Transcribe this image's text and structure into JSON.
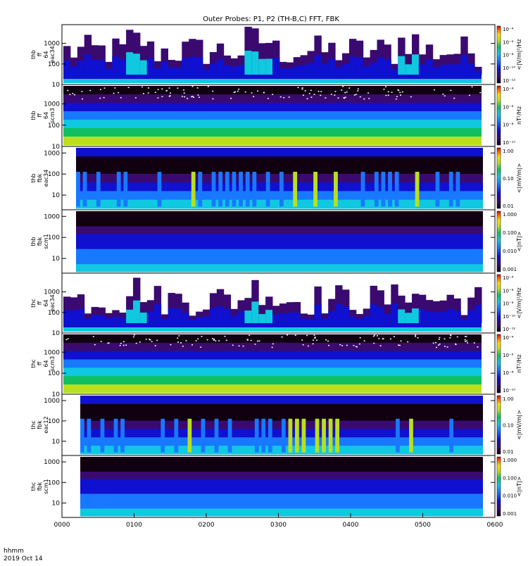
{
  "title": "Outer Probes: P1, P2 (TH-B,C) FFT, FBK",
  "time_axis": {
    "ticks": [
      "0000",
      "0100",
      "0200",
      "0300",
      "0400",
      "0500",
      "0600"
    ],
    "unit_label": "hhmm",
    "date_label": "2019 Oct 14"
  },
  "chart_data": [
    {
      "type": "heatmap",
      "panel": "thb-ff-eac34",
      "ylabel": [
        "thb",
        "ff",
        "64",
        "eac34"
      ],
      "yticks": [
        "10",
        "100",
        "1000"
      ],
      "colorbar_label": "<|V/m|²/Hz",
      "colorbar_ticks": [
        "10⁻¹²",
        "10⁻¹⁰",
        "10⁻⁸",
        "10⁻⁶",
        "10⁻⁴"
      ],
      "ylim": [
        10,
        8192
      ],
      "xlim": [
        "0000",
        "0600"
      ]
    },
    {
      "type": "heatmap",
      "panel": "thb-ff-scm3",
      "ylabel": [
        "thb",
        "ff",
        "64",
        "scm3"
      ],
      "yticks": [
        "10",
        "100",
        "1000"
      ],
      "colorbar_label": "nT²/Hz",
      "colorbar_ticks": [
        "10⁻¹⁰",
        "10⁻⁸",
        "10⁻⁶",
        "10⁻⁴"
      ],
      "ylim": [
        10,
        8192
      ],
      "xlim": [
        "0000",
        "0600"
      ]
    },
    {
      "type": "heatmap",
      "panel": "thb-fbk-eac34",
      "ylabel": [
        "thb",
        "fbk",
        "eac34"
      ],
      "yticks": [
        "10",
        "100",
        "1000"
      ],
      "colorbar_label": "<|mV/m|>",
      "colorbar_ticks": [
        "0.01",
        "0.10",
        "1.00"
      ],
      "ylim": [
        2,
        2048
      ],
      "xlim": [
        "0000",
        "0600"
      ]
    },
    {
      "type": "heatmap",
      "panel": "thb-fbk-scm1",
      "ylabel": [
        "thb",
        "fbk",
        "scm1"
      ],
      "yticks": [
        "10",
        "100",
        "1000"
      ],
      "colorbar_label": "<|nT|>",
      "colorbar_ticks": [
        "0.001",
        "0.010",
        "0.100",
        "1.000"
      ],
      "ylim": [
        2,
        2048
      ],
      "xlim": [
        "0000",
        "0600"
      ]
    },
    {
      "type": "heatmap",
      "panel": "thc-ff-eac34",
      "ylabel": [
        "thc",
        "ff",
        "64",
        "eac34"
      ],
      "yticks": [
        "10",
        "100",
        "1000"
      ],
      "colorbar_label": "<|V/m|²/Hz",
      "colorbar_ticks": [
        "10⁻¹²",
        "10⁻¹⁰",
        "10⁻⁸",
        "10⁻⁶",
        "10⁻⁴"
      ],
      "ylim": [
        10,
        8192
      ],
      "xlim": [
        "0000",
        "0600"
      ]
    },
    {
      "type": "heatmap",
      "panel": "thc-ff-scm3",
      "ylabel": [
        "thc",
        "ff",
        "64",
        "scm3"
      ],
      "yticks": [
        "10",
        "100",
        "1000"
      ],
      "colorbar_label": "nT²/Hz",
      "colorbar_ticks": [
        "10⁻¹⁰",
        "10⁻⁸",
        "10⁻⁶",
        "10⁻⁴"
      ],
      "ylim": [
        10,
        8192
      ],
      "xlim": [
        "0000",
        "0600"
      ]
    },
    {
      "type": "heatmap",
      "panel": "thc-fbk-eac12",
      "ylabel": [
        "thc",
        "fbk",
        "eac12"
      ],
      "yticks": [
        "10",
        "100",
        "1000"
      ],
      "colorbar_label": "<|mV/m|>",
      "colorbar_ticks": [
        "0.01",
        "0.10",
        "1.00"
      ],
      "ylim": [
        2,
        2048
      ],
      "xlim": [
        "0000",
        "0600"
      ]
    },
    {
      "type": "heatmap",
      "panel": "thc-fbk-scm1",
      "ylabel": [
        "thc",
        "fbk",
        "scm1"
      ],
      "yticks": [
        "10",
        "100",
        "1000"
      ],
      "colorbar_label": "<|nT|>",
      "colorbar_ticks": [
        "0.001",
        "0.010",
        "0.100",
        "1.000"
      ],
      "ylim": [
        2,
        2048
      ],
      "xlim": [
        "0000",
        "0600"
      ]
    }
  ]
}
